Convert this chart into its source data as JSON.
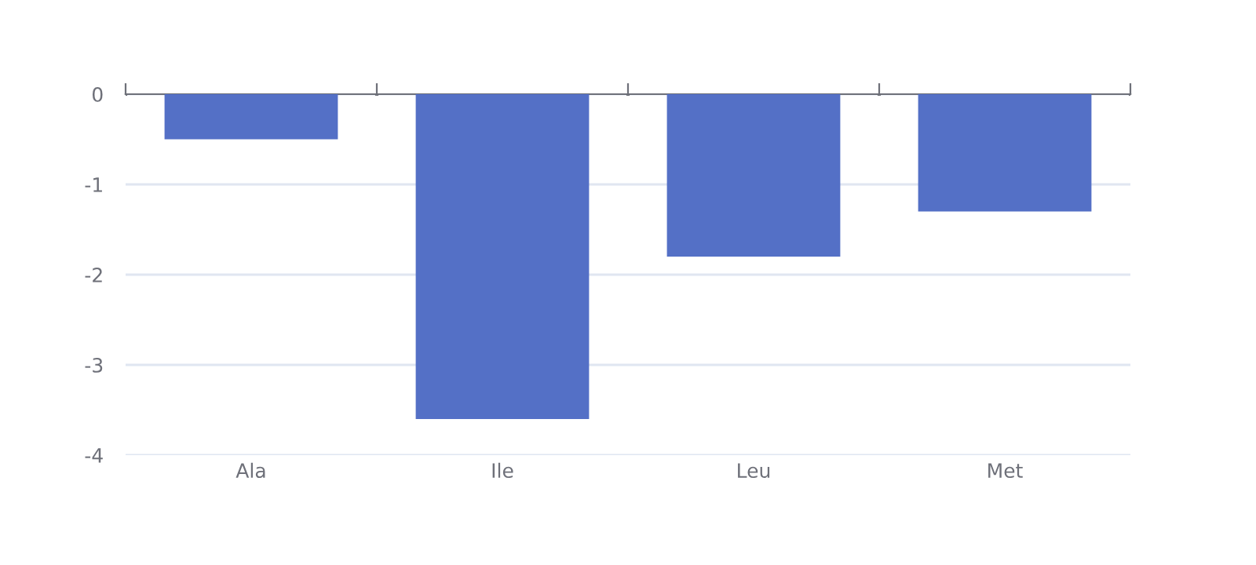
{
  "chart_data": {
    "type": "bar",
    "categories": [
      "Ala",
      "Ile",
      "Leu",
      "Met"
    ],
    "series": [
      {
        "color": "#5470c6",
        "values": [
          -0.5,
          -3.6,
          -1.8,
          -1.3
        ]
      }
    ],
    "ylim": [
      -4,
      0
    ],
    "yticks": [
      -4,
      -3,
      -2,
      -1,
      0
    ],
    "grid": "y",
    "legend": false
  }
}
